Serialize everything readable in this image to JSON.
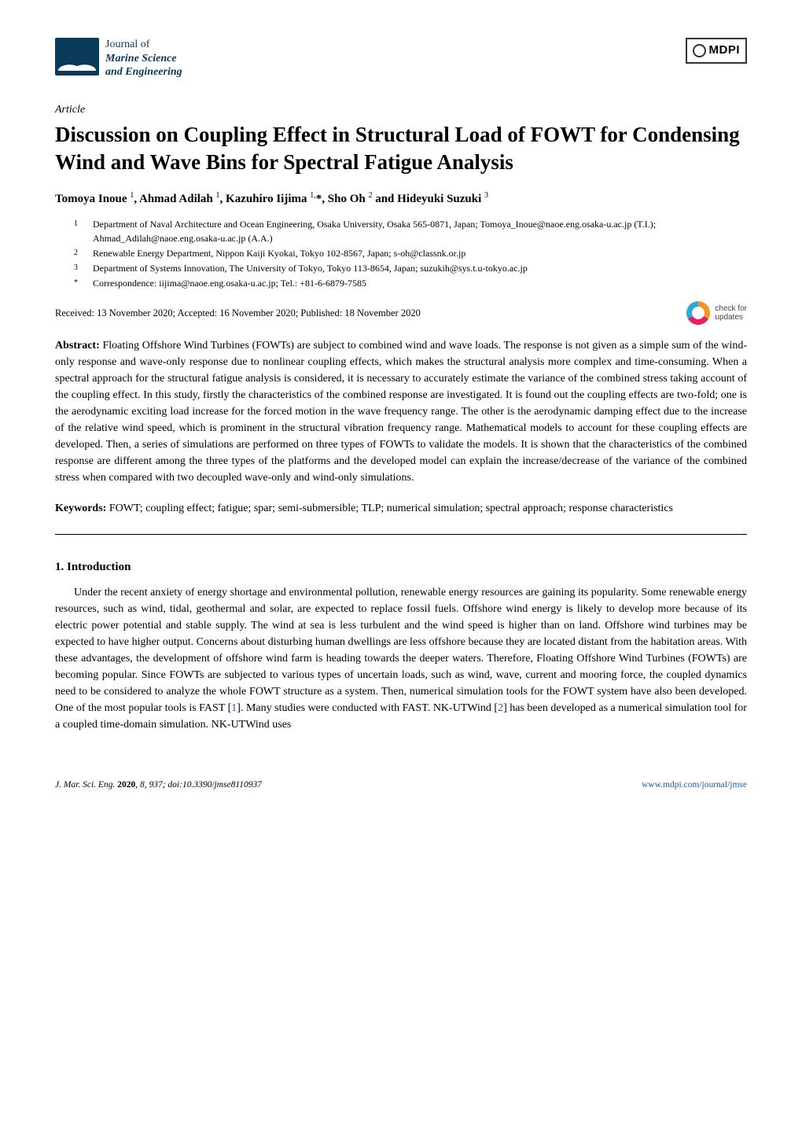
{
  "journal": {
    "line1": "Journal of",
    "line2": "Marine Science",
    "line3": "and Engineering"
  },
  "publisher_logo_text": "MDPI",
  "article_type": "Article",
  "title": "Discussion on Coupling Effect in Structural Load of FOWT for Condensing Wind and Wave Bins for Spectral Fatigue Analysis",
  "authors_html": "Tomoya Inoue <sup>1</sup>, Ahmad Adilah <sup>1</sup>, Kazuhiro Iijima <sup>1,</sup>*, Sho Oh <sup>2</sup> and Hideyuki Suzuki <sup>3</sup>",
  "affiliations": [
    {
      "num": "1",
      "text": "Department of Naval Architecture and Ocean Engineering, Osaka University, Osaka 565-0871, Japan; Tomoya_Inoue@naoe.eng.osaka-u.ac.jp (T.I.); Ahmad_Adilah@naoe.eng.osaka-u.ac.jp (A.A.)"
    },
    {
      "num": "2",
      "text": "Renewable Energy Department, Nippon Kaiji Kyokai, Tokyo 102-8567, Japan; s-oh@classnk.or.jp"
    },
    {
      "num": "3",
      "text": "Department of Systems Innovation, The University of Tokyo, Tokyo 113-8654, Japan; suzukih@sys.t.u-tokyo.ac.jp"
    },
    {
      "num": "*",
      "text": "Correspondence: iijima@naoe.eng.osaka-u.ac.jp; Tel.: +81-6-6879-7585"
    }
  ],
  "received_line": "Received: 13 November 2020; Accepted: 16 November 2020; Published: 18 November 2020",
  "check_updates": {
    "line1": "check for",
    "line2": "updates"
  },
  "abstract_label": "Abstract:",
  "abstract_text": "Floating Offshore Wind Turbines (FOWTs) are subject to combined wind and wave loads. The response is not given as a simple sum of the wind-only response and wave-only response due to nonlinear coupling effects, which makes the structural analysis more complex and time-consuming. When a spectral approach for the structural fatigue analysis is considered, it is necessary to accurately estimate the variance of the combined stress taking account of the coupling effect. In this study, firstly the characteristics of the combined response are investigated. It is found out the coupling effects are two-fold; one is the aerodynamic exciting load increase for the forced motion in the wave frequency range. The other is the aerodynamic damping effect due to the increase of the relative wind speed, which is prominent in the structural vibration frequency range. Mathematical models to account for these coupling effects are developed. Then, a series of simulations are performed on three types of FOWTs to validate the models. It is shown that the characteristics of the combined response are different among the three types of the platforms and the developed model can explain the increase/decrease of the variance of the combined stress when compared with two decoupled wave-only and wind-only simulations.",
  "keywords_label": "Keywords:",
  "keywords_text": "FOWT; coupling effect; fatigue; spar; semi-submersible; TLP; numerical simulation; spectral approach; response characteristics",
  "section1_heading": "1. Introduction",
  "section1_body": "Under the recent anxiety of energy shortage and environmental pollution, renewable energy resources are gaining its popularity. Some renewable energy resources, such as wind, tidal, geothermal and solar, are expected to replace fossil fuels. Offshore wind energy is likely to develop more because of its electric power potential and stable supply. The wind at sea is less turbulent and the wind speed is higher than on land. Offshore wind turbines may be expected to have higher output. Concerns about disturbing human dwellings are less offshore because they are located distant from the habitation areas. With these advantages, the development of offshore wind farm is heading towards the deeper waters. Therefore, Floating Offshore Wind Turbines (FOWTs) are becoming popular. Since FOWTs are subjected to various types of uncertain loads, such as wind, wave, current and mooring force, the coupled dynamics need to be considered to analyze the whole FOWT structure as a system. Then, numerical simulation tools for the FOWT system have also been developed. One of the most popular tools is FAST [1]. Many studies were conducted with FAST. NK-UTWind [2] has been developed as a numerical simulation tool for a coupled time-domain simulation. NK-UTWind uses",
  "cite1": "1",
  "cite2": "2",
  "footer": {
    "left_prefix": "J. Mar. Sci. Eng. ",
    "left_bold": "2020",
    "left_rest": ", 8, 937; doi:10.3390/jmse8110937",
    "right": "www.mdpi.com/journal/jmse"
  },
  "colors": {
    "link": "#1a5fb4",
    "journal_brand": "#0a3a5a"
  }
}
